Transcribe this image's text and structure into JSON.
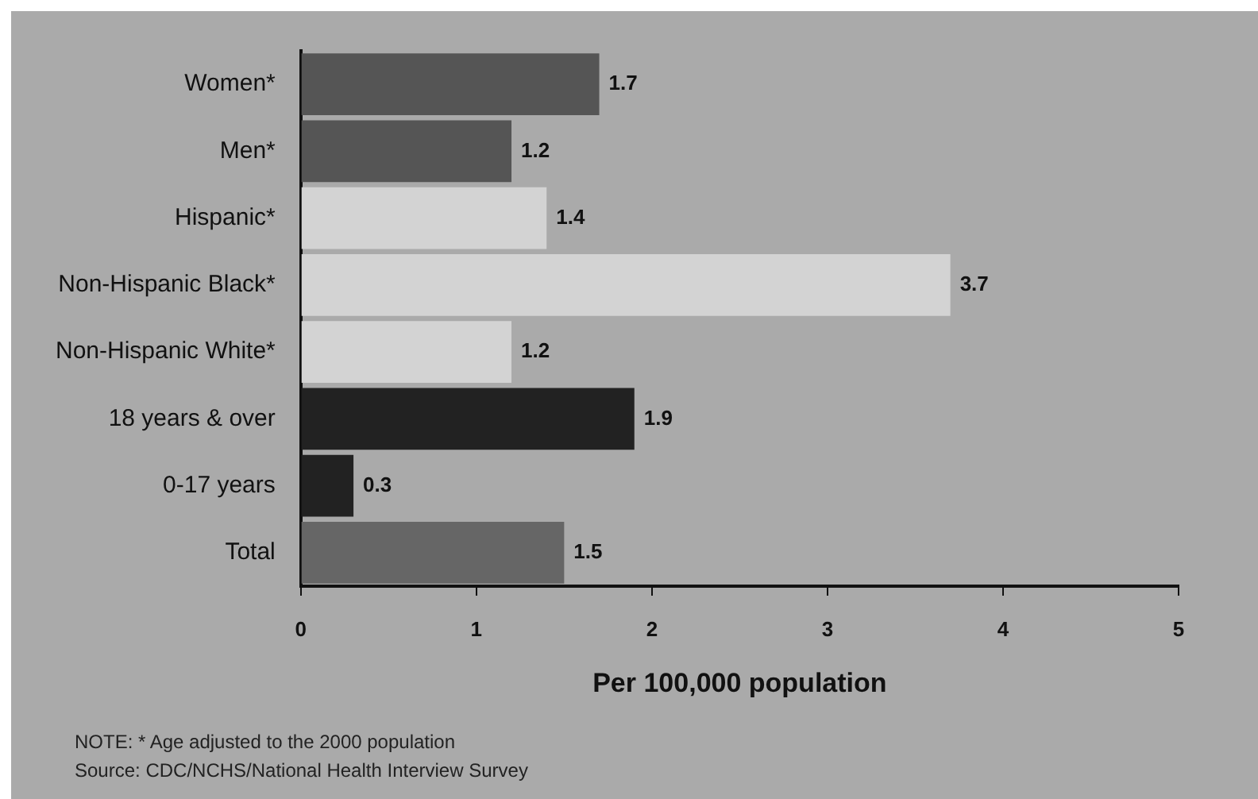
{
  "chart_data": {
    "type": "bar",
    "orientation": "horizontal",
    "xlabel": "Per 100,000 population",
    "categories": [
      "Women*",
      "Men*",
      "Hispanic*",
      "Non-Hispanic Black*",
      "Non-Hispanic White*",
      "18 years & over",
      "0-17 years",
      "Total"
    ],
    "values": [
      1.7,
      1.2,
      1.4,
      3.7,
      1.2,
      1.9,
      0.3,
      1.5
    ],
    "colors": [
      "#555555",
      "#555555",
      "#d3d3d3",
      "#d3d3d3",
      "#d3d3d3",
      "#222222",
      "#222222",
      "#666666"
    ],
    "xlim": [
      0,
      5
    ],
    "xticks": [
      0,
      1,
      2,
      3,
      4,
      5
    ],
    "grid": false,
    "legend": false,
    "data_labels": true,
    "annotations": [
      "NOTE: * Age adjusted to the 2000 population",
      "Source: CDC/NCHS/National Health Interview Survey"
    ]
  }
}
